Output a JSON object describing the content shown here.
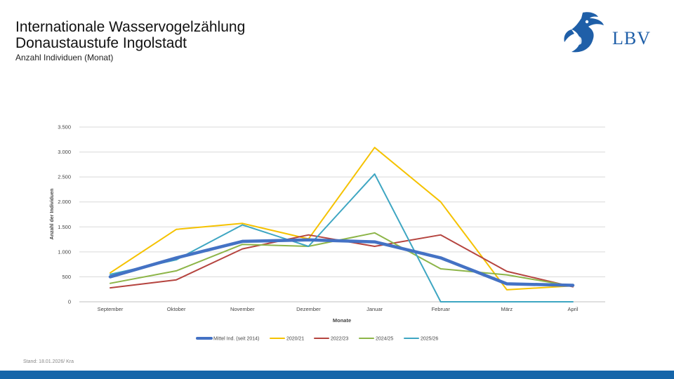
{
  "header": {
    "title_line1": "Internationale Wasservogelzählung",
    "title_line2": "Donaustaustufe Ingolstadt",
    "subtitle": "Anzahl Individuen (Monat)"
  },
  "logo": {
    "text": "LBV",
    "color": "#1f5fa8"
  },
  "footer": {
    "note": "Stand: 18.01.2026/ Kra"
  },
  "colors": {
    "bottom_bar": "#1565a9"
  },
  "chart_data": {
    "type": "line",
    "title": "",
    "xlabel": "Monate",
    "ylabel": "Anzahl der Individuen",
    "categories": [
      "September",
      "Oktober",
      "November",
      "Dezember",
      "Januar",
      "Februar",
      "März",
      "April"
    ],
    "ylim": [
      0,
      3500
    ],
    "yticks": [
      0,
      500,
      1000,
      1500,
      2000,
      2500,
      3000,
      3500
    ],
    "ytick_labels": [
      "0",
      "500",
      "1.000",
      "1.500",
      "2.000",
      "2.500",
      "3.000",
      "3.500"
    ],
    "grid": true,
    "legend_position": "bottom",
    "series": [
      {
        "name": "Mittel Ind. (seit 2014)",
        "color": "#4472c4",
        "values": [
          500,
          880,
          1210,
          1240,
          1200,
          880,
          360,
          330
        ]
      },
      {
        "name": "2020/21",
        "color": "#f5c200",
        "values": [
          580,
          1450,
          1570,
          1260,
          3090,
          2000,
          240,
          320
        ]
      },
      {
        "name": "2022/23",
        "color": "#b5443f",
        "values": [
          280,
          440,
          1060,
          1340,
          1110,
          1340,
          610,
          300
        ]
      },
      {
        "name": "2024/25",
        "color": "#8db548",
        "values": [
          370,
          620,
          1150,
          1110,
          1380,
          660,
          540,
          310
        ]
      },
      {
        "name": "2025/26",
        "color": "#3ea6c2",
        "values": [
          550,
          840,
          1540,
          1110,
          2560,
          0,
          0,
          0
        ]
      }
    ]
  }
}
